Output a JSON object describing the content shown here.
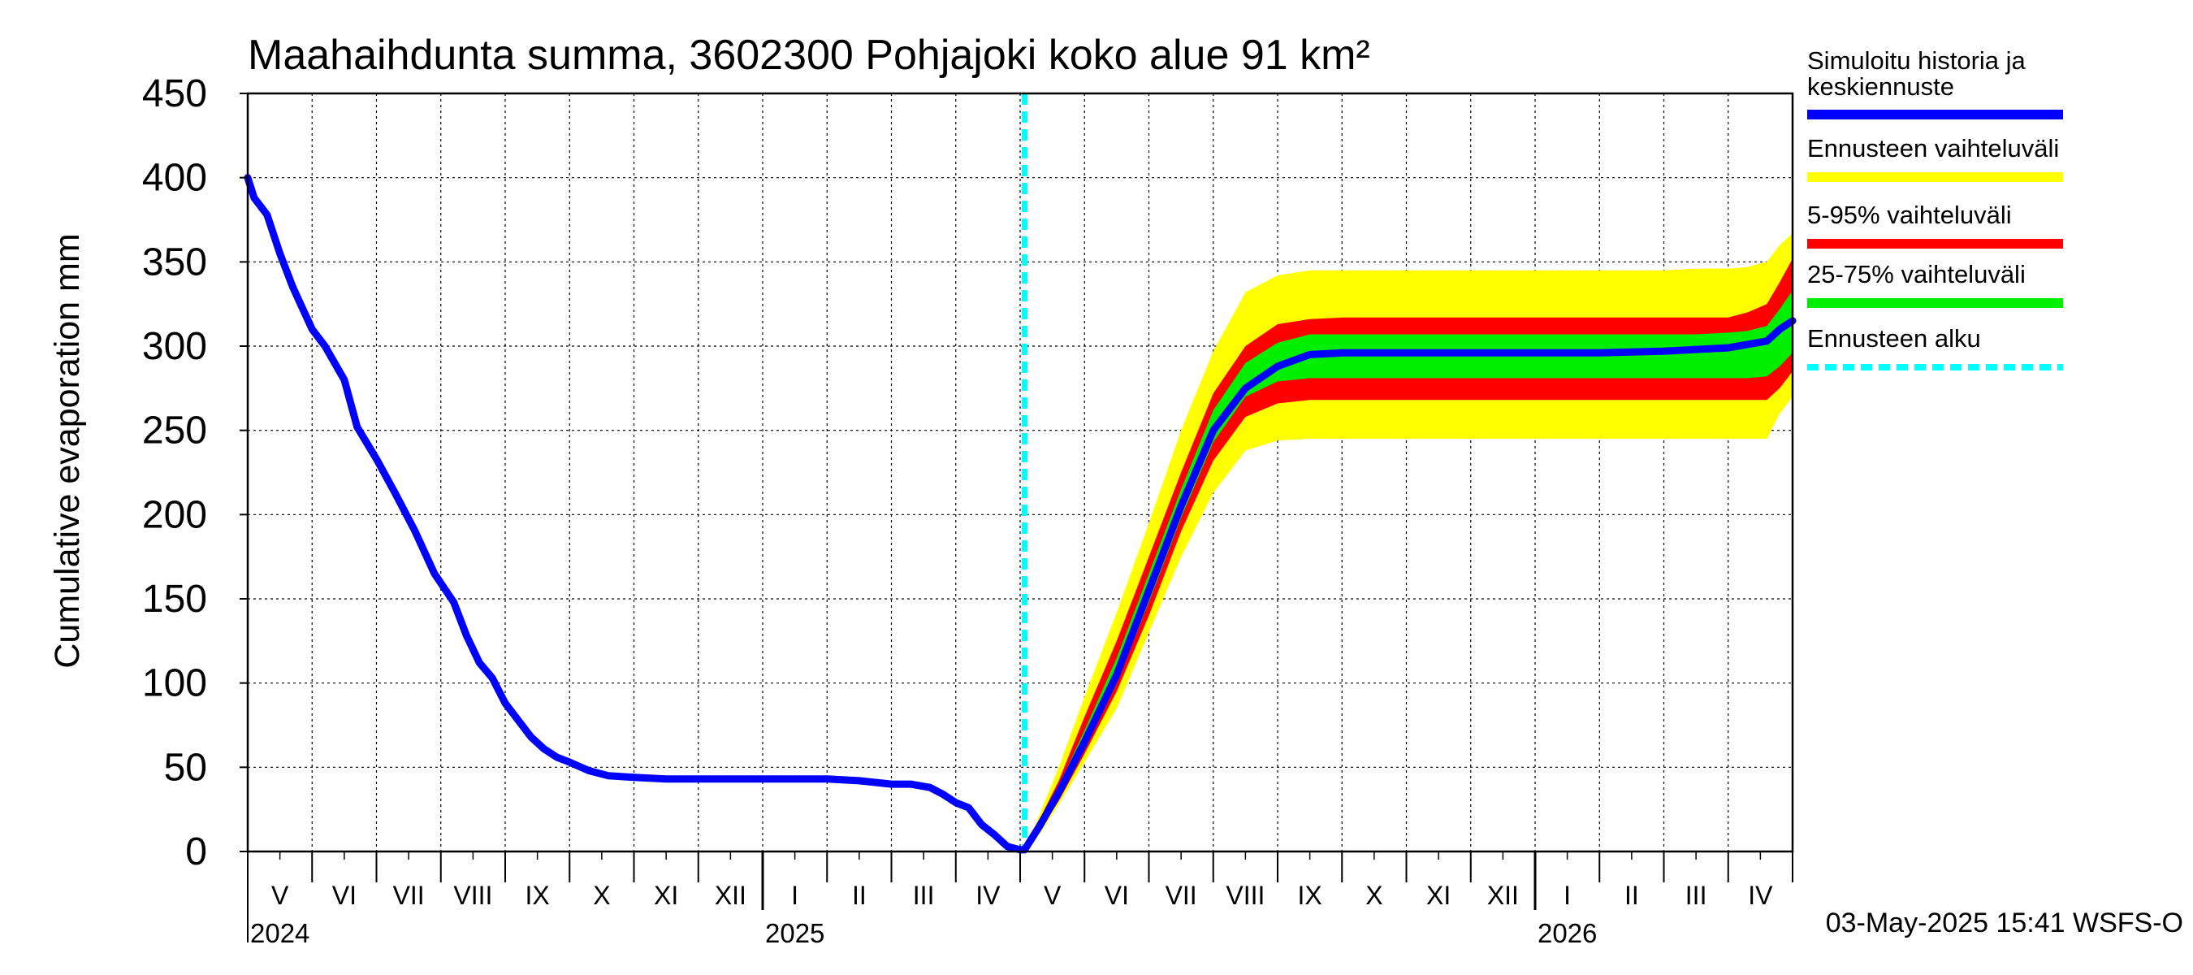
{
  "chart_data": {
    "type": "line",
    "title": "Maahaihdunta summa, 3602300 Pohjajoki koko alue 91 km²",
    "ylabel": "Cumulative evaporation   mm",
    "xlabel": "",
    "ylim": [
      0,
      450
    ],
    "yticks": [
      0,
      50,
      100,
      150,
      200,
      250,
      300,
      350,
      400,
      450
    ],
    "grid": true,
    "x_unit": "months since 2024-04-01 (day-level)",
    "xlim": [
      1.0,
      25.0
    ],
    "month_labels": [
      "V",
      "VI",
      "VII",
      "VIII",
      "IX",
      "X",
      "XI",
      "XII",
      "I",
      "II",
      "III",
      "IV",
      "V",
      "VI",
      "VII",
      "VIII",
      "IX",
      "X",
      "XI",
      "XII",
      "I",
      "II",
      "III",
      "IV"
    ],
    "year_labels": [
      {
        "label": "2024",
        "x": 1.0
      },
      {
        "label": "2025",
        "x": 9.0
      },
      {
        "label": "2026",
        "x": 21.0
      }
    ],
    "forecast_start": 13.07,
    "legend": [
      {
        "label": "Simuloitu historia ja keskiennuste",
        "color": "#0000ff",
        "style": "solid"
      },
      {
        "label": "Ennusteen vaihteluväli",
        "color": "#ffff00",
        "style": "solid"
      },
      {
        "label": "5-95% vaihteluväli",
        "color": "#ff0000",
        "style": "solid"
      },
      {
        "label": "25-75% vaihteluväli",
        "color": "#00ee00",
        "style": "solid"
      },
      {
        "label": "Ennusteen alku",
        "color": "#00ffff",
        "style": "dashed"
      }
    ],
    "legend_position": "right",
    "series": [
      {
        "name": "Simuloitu historia ja keskiennuste",
        "color": "#0000ff",
        "x": [
          1.0,
          1.1,
          1.3,
          1.5,
          1.7,
          2.0,
          2.2,
          2.5,
          2.7,
          3.0,
          3.3,
          3.6,
          3.9,
          4.2,
          4.4,
          4.6,
          4.8,
          5.0,
          5.2,
          5.4,
          5.6,
          5.8,
          6.0,
          6.3,
          6.6,
          7.0,
          7.5,
          8.0,
          8.5,
          9.0,
          9.5,
          10.0,
          10.5,
          11.0,
          11.3,
          11.6,
          11.8,
          12.0,
          12.2,
          12.4,
          12.6,
          12.8,
          13.0,
          13.07,
          13.3,
          13.6,
          14.0,
          14.5,
          15.0,
          15.5,
          16.0,
          16.5,
          17.0,
          17.5,
          18.0,
          18.5,
          19.0,
          19.5,
          20.0,
          21.0,
          22.0,
          23.0,
          23.5,
          24.0,
          24.3,
          24.6,
          24.8,
          25.0
        ],
        "values": [
          400,
          388,
          378,
          355,
          335,
          310,
          300,
          280,
          252,
          233,
          212,
          190,
          165,
          148,
          128,
          112,
          103,
          88,
          78,
          68,
          61,
          56,
          53,
          48,
          45,
          44,
          43,
          43,
          43,
          43,
          43,
          43,
          42,
          40,
          40,
          38,
          34,
          29,
          26,
          16,
          10,
          3,
          1,
          1,
          15,
          35,
          65,
          105,
          155,
          205,
          250,
          275,
          288,
          295,
          296,
          296,
          296,
          296,
          296,
          296,
          296,
          297,
          298,
          299,
          301,
          303,
          310,
          315
        ]
      },
      {
        "name": "Ennusteen vaihteluväli",
        "color": "#ffff00",
        "x": [
          13.07,
          13.3,
          13.6,
          14.0,
          14.5,
          15.0,
          15.5,
          16.0,
          16.5,
          17.0,
          17.5,
          18.0,
          18.5,
          19.0,
          19.5,
          20.0,
          21.0,
          22.0,
          23.0,
          23.5,
          24.0,
          24.3,
          24.6,
          24.8,
          25.0
        ],
        "lower": [
          1,
          10,
          28,
          53,
          85,
          130,
          175,
          213,
          238,
          244,
          245,
          245,
          245,
          245,
          245,
          245,
          245,
          245,
          245,
          245,
          245,
          245,
          245,
          260,
          270
        ],
        "upper": [
          1,
          22,
          50,
          92,
          142,
          195,
          250,
          297,
          332,
          342,
          345,
          345,
          345,
          345,
          345,
          345,
          345,
          345,
          345,
          346,
          346,
          347,
          350,
          360,
          367
        ]
      },
      {
        "name": "5-95% vaihteluväli",
        "color": "#ff0000",
        "x": [
          13.07,
          13.3,
          13.6,
          14.0,
          14.5,
          15.0,
          15.5,
          16.0,
          16.5,
          17.0,
          17.5,
          18.0,
          18.5,
          19.0,
          19.5,
          20.0,
          21.0,
          22.0,
          23.0,
          23.5,
          24.0,
          24.3,
          24.6,
          24.8,
          25.0
        ],
        "lower": [
          1,
          12,
          30,
          58,
          95,
          140,
          190,
          232,
          258,
          266,
          268,
          268,
          268,
          268,
          268,
          268,
          268,
          268,
          268,
          268,
          268,
          268,
          268,
          275,
          285
        ],
        "upper": [
          1,
          19,
          42,
          80,
          125,
          175,
          225,
          272,
          300,
          313,
          316,
          317,
          317,
          317,
          317,
          317,
          317,
          317,
          317,
          317,
          317,
          320,
          325,
          338,
          352
        ]
      },
      {
        "name": "25-75% vaihteluväli",
        "color": "#00ee00",
        "x": [
          13.07,
          13.3,
          13.6,
          14.0,
          14.5,
          15.0,
          15.5,
          16.0,
          16.5,
          17.0,
          17.5,
          18.0,
          18.5,
          19.0,
          19.5,
          20.0,
          21.0,
          22.0,
          23.0,
          23.5,
          24.0,
          24.3,
          24.6,
          24.8,
          25.0
        ],
        "lower": [
          1,
          14,
          32,
          61,
          100,
          148,
          198,
          243,
          270,
          279,
          281,
          281,
          281,
          281,
          281,
          281,
          281,
          281,
          281,
          281,
          281,
          281,
          282,
          288,
          296
        ],
        "upper": [
          1,
          17,
          39,
          72,
          115,
          165,
          215,
          262,
          290,
          302,
          307,
          307,
          307,
          307,
          307,
          307,
          307,
          307,
          307,
          307,
          308,
          309,
          312,
          322,
          333
        ]
      }
    ]
  },
  "footer": {
    "timestamp": "03-May-2025 15:41 WSFS-O"
  }
}
